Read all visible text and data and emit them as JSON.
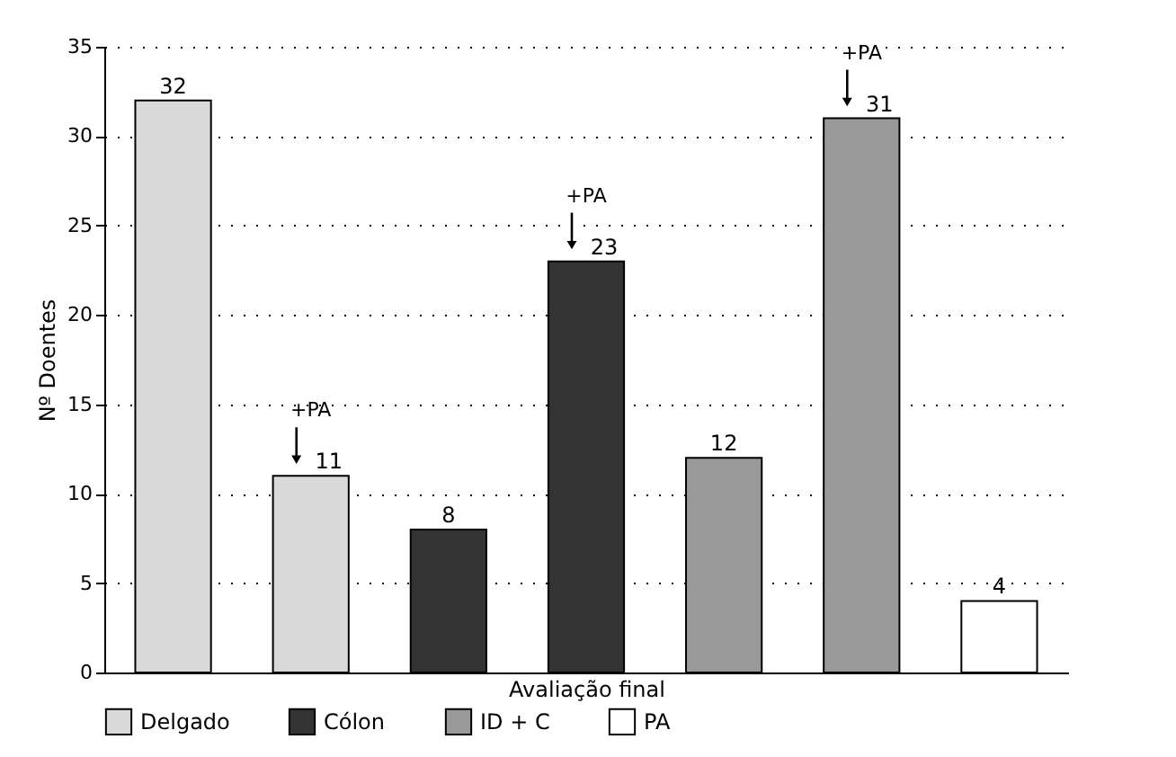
{
  "chart_data": {
    "type": "bar",
    "xlabel": "Avaliação final",
    "ylabel": "Nº Doentes",
    "categories": [
      null,
      null,
      null,
      null,
      null,
      null,
      null
    ],
    "series": [
      {
        "name": "Delgado",
        "color": "#d9d9d9",
        "values": [
          32,
          11,
          null,
          null,
          null,
          null,
          null
        ]
      },
      {
        "name": "Cólon",
        "color": "#333333",
        "values": [
          null,
          null,
          8,
          23,
          null,
          null,
          null
        ]
      },
      {
        "name": "ID + C",
        "color": "#999999",
        "values": [
          null,
          null,
          null,
          null,
          12,
          31,
          null
        ]
      },
      {
        "name": "PA",
        "color": "#ffffff",
        "values": [
          null,
          null,
          null,
          null,
          null,
          null,
          4
        ]
      }
    ],
    "ylim": [
      0,
      35
    ],
    "yticks": [
      0,
      5,
      10,
      15,
      20,
      25,
      30,
      35
    ],
    "grid": "y",
    "legend": "bottom",
    "tick_labels": "y",
    "data_labels": true,
    "annotations": [
      {
        "text": "+PA",
        "y": 11
      },
      {
        "text": "+PA",
        "y": 23
      },
      {
        "text": "+PA",
        "y": 31
      }
    ]
  }
}
